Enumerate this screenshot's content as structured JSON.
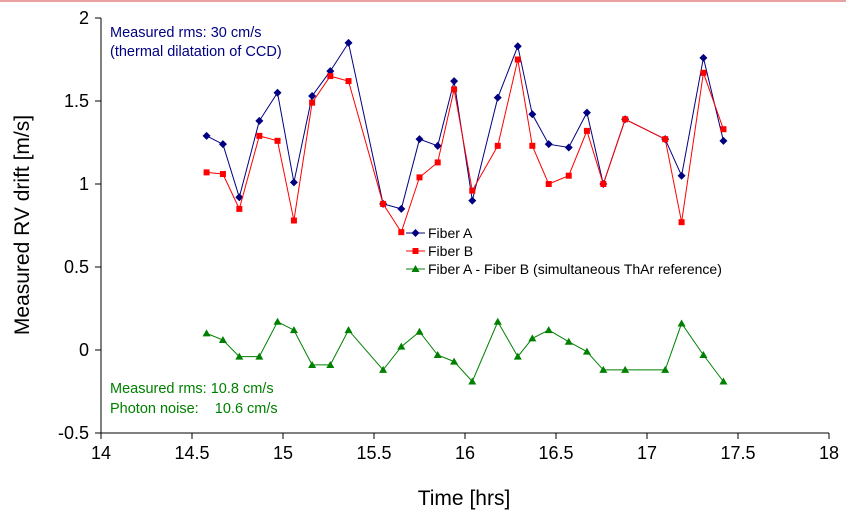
{
  "chart_data": {
    "type": "line",
    "xlabel": "Time [hrs]",
    "ylabel": "Measured RV drift [m/s]",
    "xlim": [
      14,
      18
    ],
    "ylim": [
      -0.5,
      2
    ],
    "xticks": [
      "14",
      "14.5",
      "15",
      "15.5",
      "16",
      "16.5",
      "17",
      "17.5",
      "18"
    ],
    "yticks": [
      "-0.5",
      "0",
      "0.5",
      "1",
      "1.5",
      "2"
    ],
    "grid": false,
    "legend_position": "center-right",
    "series": [
      {
        "name": "Fiber A",
        "color": "#000080",
        "marker": "diamond",
        "x": [
          14.58,
          14.67,
          14.76,
          14.87,
          14.97,
          15.06,
          15.16,
          15.26,
          15.36,
          15.55,
          15.65,
          15.75,
          15.85,
          15.94,
          16.04,
          16.18,
          16.29,
          16.37,
          16.46,
          16.57,
          16.67,
          16.76,
          16.88,
          17.1,
          17.19,
          17.31,
          17.42
        ],
        "y": [
          1.29,
          1.24,
          0.92,
          1.38,
          1.55,
          1.01,
          1.53,
          1.68,
          1.85,
          0.88,
          0.85,
          1.27,
          1.23,
          1.62,
          0.9,
          1.52,
          1.83,
          1.42,
          1.24,
          1.22,
          1.43,
          1.0,
          1.39,
          1.27,
          1.05,
          1.76,
          1.26
        ]
      },
      {
        "name": "Fiber B",
        "color": "#ff0000",
        "marker": "square",
        "x": [
          14.58,
          14.67,
          14.76,
          14.87,
          14.97,
          15.06,
          15.16,
          15.26,
          15.36,
          15.55,
          15.65,
          15.75,
          15.85,
          15.94,
          16.04,
          16.18,
          16.29,
          16.37,
          16.46,
          16.57,
          16.67,
          16.76,
          16.88,
          17.1,
          17.19,
          17.31,
          17.42
        ],
        "y": [
          1.07,
          1.06,
          0.85,
          1.29,
          1.26,
          0.78,
          1.49,
          1.65,
          1.62,
          0.88,
          0.71,
          1.04,
          1.13,
          1.57,
          0.96,
          1.23,
          1.75,
          1.23,
          1.0,
          1.05,
          1.32,
          1.0,
          1.39,
          1.27,
          0.77,
          1.67,
          1.33
        ]
      },
      {
        "name": "Fiber A - Fiber B (simultaneous ThAr reference)",
        "color": "#008000",
        "marker": "triangle",
        "x": [
          14.58,
          14.67,
          14.76,
          14.87,
          14.97,
          15.06,
          15.16,
          15.26,
          15.36,
          15.55,
          15.65,
          15.75,
          15.85,
          15.94,
          16.04,
          16.18,
          16.29,
          16.37,
          16.46,
          16.57,
          16.67,
          16.76,
          16.88,
          17.1,
          17.19,
          17.31,
          17.42
        ],
        "y": [
          0.1,
          0.06,
          -0.04,
          -0.04,
          0.17,
          0.12,
          -0.09,
          -0.09,
          0.12,
          -0.12,
          0.02,
          0.11,
          -0.03,
          -0.07,
          -0.19,
          0.17,
          -0.04,
          0.07,
          0.12,
          0.05,
          -0.01,
          -0.12,
          -0.12,
          -0.12,
          0.16,
          -0.03,
          -0.19
        ]
      }
    ],
    "annotations": [
      {
        "text": "Measured rms:  30 cm/s",
        "color": "#000080"
      },
      {
        "text": "(thermal dilatation of CCD)",
        "color": "#000080"
      },
      {
        "text": "Measured rms:  10.8 cm/s",
        "color": "#008000"
      },
      {
        "text": "Photon noise:    10.6 cm/s",
        "color": "#008000"
      }
    ]
  }
}
